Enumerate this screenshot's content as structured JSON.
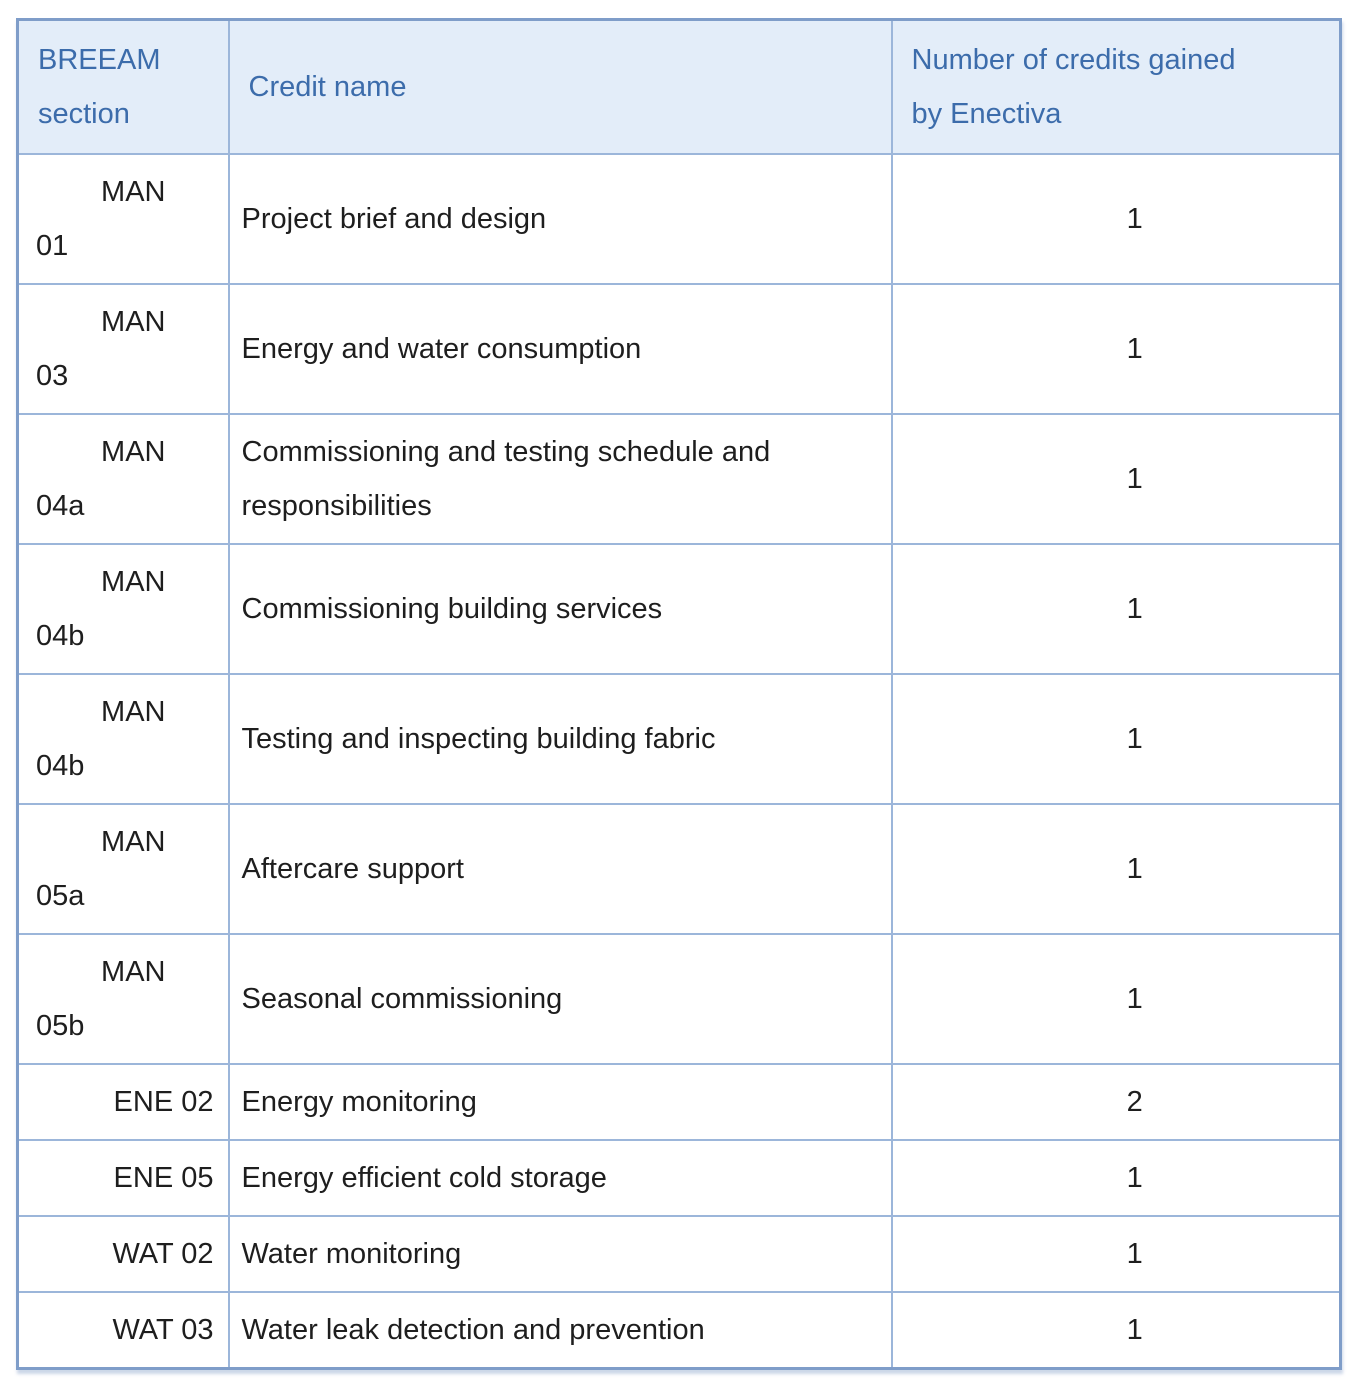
{
  "table": {
    "columns": [
      {
        "id": "section",
        "label": "BREEAM\nsection"
      },
      {
        "id": "credit",
        "label": "Credit name"
      },
      {
        "id": "credits",
        "label": "Number of credits gained\nby Enectiva"
      }
    ],
    "rows": [
      {
        "section_lines": [
          "MAN",
          "01"
        ],
        "credit_name": "Project brief and design",
        "credits": "1"
      },
      {
        "section_lines": [
          "MAN",
          "03"
        ],
        "credit_name": "Energy and water consumption",
        "credits": "1"
      },
      {
        "section_lines": [
          "MAN",
          "04a"
        ],
        "credit_name": "Commissioning and testing schedule and responsibilities",
        "credits": "1"
      },
      {
        "section_lines": [
          "MAN",
          "04b"
        ],
        "credit_name": "Commissioning building services",
        "credits": "1"
      },
      {
        "section_lines": [
          "MAN",
          "04b"
        ],
        "credit_name": "Testing and inspecting building fabric",
        "credits": "1"
      },
      {
        "section_lines": [
          "MAN",
          "05a"
        ],
        "credit_name": "Aftercare support",
        "credits": "1"
      },
      {
        "section_lines": [
          "MAN",
          "05b"
        ],
        "credit_name": "Seasonal commissioning",
        "credits": "1"
      },
      {
        "section_lines": [
          "ENE 02"
        ],
        "credit_name": "Energy monitoring",
        "credits": "2"
      },
      {
        "section_lines": [
          "ENE 05"
        ],
        "credit_name": "Energy efficient cold storage",
        "credits": "1"
      },
      {
        "section_lines": [
          "WAT 02"
        ],
        "credit_name": "Water monitoring",
        "credits": "1"
      },
      {
        "section_lines": [
          "WAT 03"
        ],
        "credit_name": "Water leak detection and prevention",
        "credits": "1"
      }
    ]
  },
  "colors": {
    "header_bg": "#e3edf9",
    "header_text": "#3c6cab",
    "border": "#9cb6da",
    "outer_border": "#7f9dc9",
    "body_text": "#1e1e1e",
    "page_bg": "#ffffff"
  }
}
